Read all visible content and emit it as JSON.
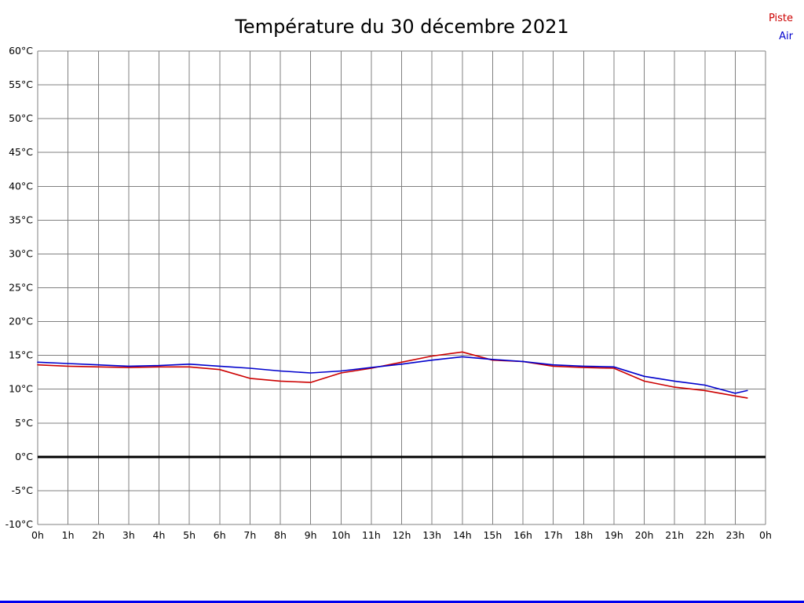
{
  "chart_data": {
    "type": "line",
    "title": "Température du 30 décembre 2021",
    "xlabel": "",
    "ylabel": "",
    "ylim": [
      -10,
      60
    ],
    "ytick_step": 5,
    "ytick_suffix": "°C",
    "xlim": [
      0,
      24
    ],
    "x_tick_labels": [
      "0h",
      "1h",
      "2h",
      "3h",
      "4h",
      "5h",
      "6h",
      "7h",
      "8h",
      "9h",
      "10h",
      "11h",
      "12h",
      "13h",
      "14h",
      "15h",
      "16h",
      "17h",
      "18h",
      "19h",
      "20h",
      "21h",
      "22h",
      "23h",
      "0h"
    ],
    "grid": true,
    "zero_line": true,
    "legend_position": "top-right",
    "x": [
      0,
      1,
      2,
      3,
      4,
      5,
      6,
      7,
      8,
      9,
      10,
      11,
      12,
      13,
      14,
      15,
      16,
      17,
      18,
      19,
      20,
      21,
      22,
      23,
      23.4
    ],
    "series": [
      {
        "name": "Piste",
        "color": "#cc0000",
        "values": [
          13.6,
          13.4,
          13.3,
          13.2,
          13.3,
          13.3,
          12.9,
          11.6,
          11.2,
          11.0,
          12.4,
          13.1,
          14.0,
          14.9,
          15.5,
          14.3,
          14.1,
          13.4,
          13.2,
          13.1,
          11.2,
          10.3,
          9.8,
          9.0,
          8.7
        ]
      },
      {
        "name": "Air",
        "color": "#0000cc",
        "values": [
          14.0,
          13.8,
          13.6,
          13.4,
          13.5,
          13.7,
          13.4,
          13.1,
          12.7,
          12.4,
          12.7,
          13.2,
          13.7,
          14.3,
          14.8,
          14.4,
          14.1,
          13.6,
          13.4,
          13.3,
          11.9,
          11.2,
          10.6,
          9.4,
          9.8
        ]
      }
    ],
    "colors": {
      "grid": "#808080",
      "zero_line": "#000000",
      "axis_text": "#000000",
      "border_bottom": "#0000ee"
    }
  }
}
